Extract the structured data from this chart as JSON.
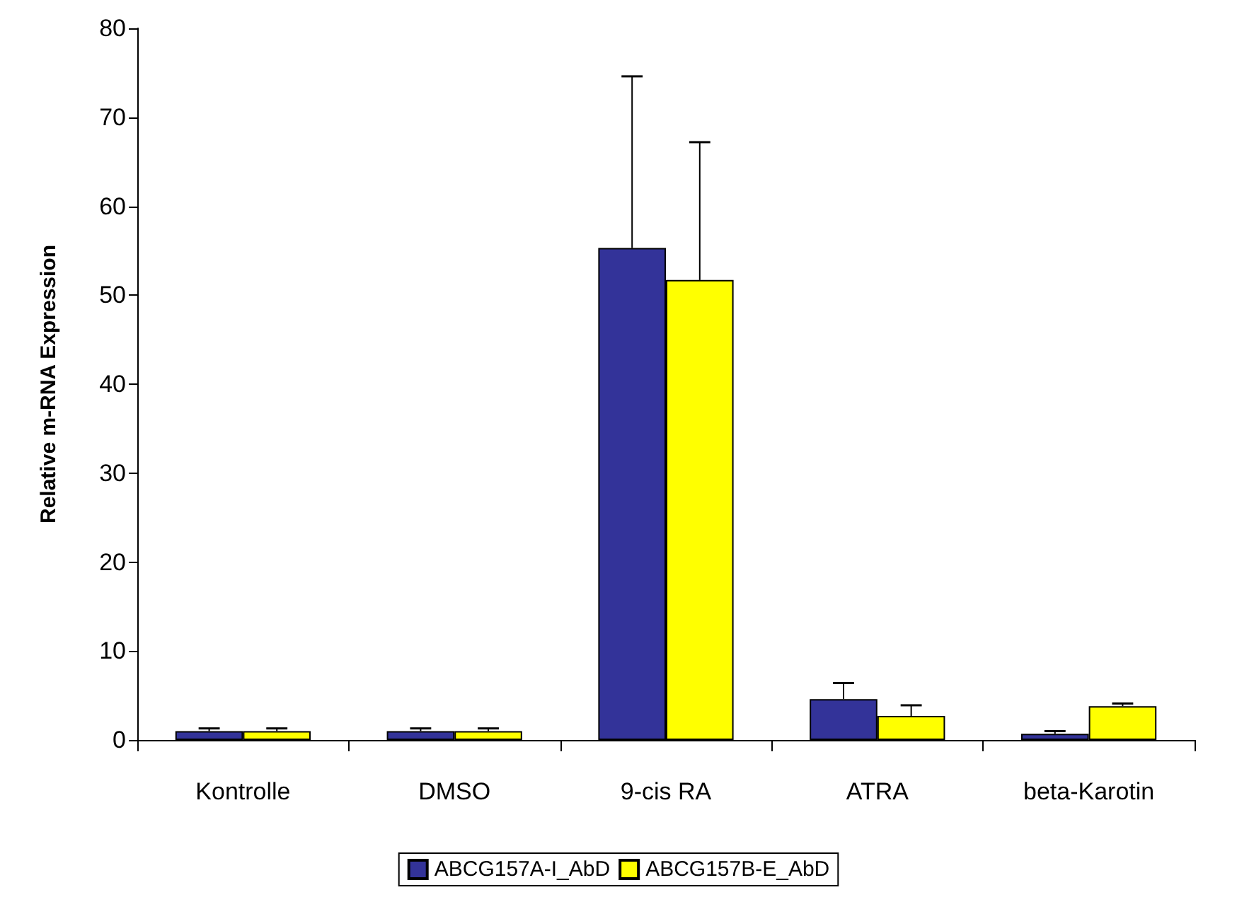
{
  "chart_data": {
    "type": "bar",
    "ylabel": "Relative m-RNA Expression",
    "categories": [
      "Kontrolle",
      "DMSO",
      "9-cis RA",
      "ATRA",
      "beta-Karotin"
    ],
    "series": [
      {
        "name": "ABCG157A-I_AbD",
        "color": "#333399",
        "values": [
          1.0,
          1.0,
          55.3,
          4.6,
          0.7
        ],
        "errors": [
          [
            1.0,
            1.3
          ],
          [
            1.0,
            1.3
          ],
          [
            55.3,
            74.6
          ],
          [
            4.6,
            6.4
          ],
          [
            0.7,
            1.0
          ]
        ]
      },
      {
        "name": "ABCG157B-E_AbD",
        "color": "#ffff00",
        "values": [
          1.0,
          1.0,
          51.7,
          2.7,
          3.8
        ],
        "errors": [
          [
            1.0,
            1.3
          ],
          [
            1.0,
            1.3
          ],
          [
            51.7,
            67.2
          ],
          [
            2.7,
            3.9
          ],
          [
            3.8,
            4.1
          ]
        ]
      }
    ],
    "ylim": [
      0,
      80
    ],
    "yticks": [
      0,
      10,
      20,
      30,
      40,
      50,
      60,
      70,
      80
    ],
    "grid": false,
    "legend": "bottom"
  }
}
